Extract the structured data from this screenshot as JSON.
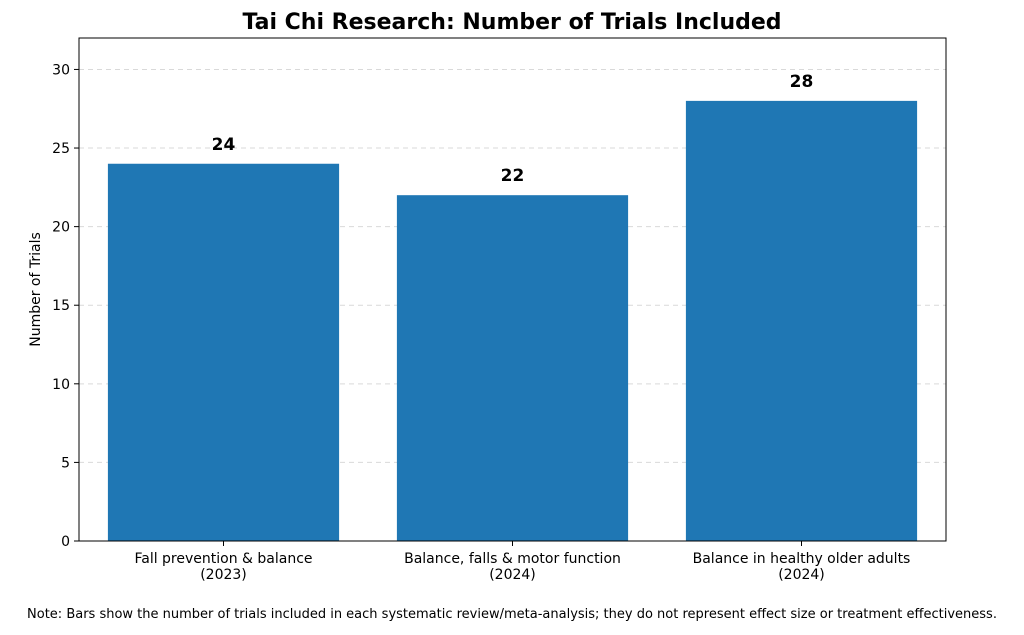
{
  "chart_data": {
    "type": "bar",
    "title": "Tai Chi Research: Number of Trials Included",
    "ylabel": "Number of Trials",
    "xlabel": "",
    "categories": [
      [
        "Fall prevention & balance",
        "(2023)"
      ],
      [
        "Balance, falls & motor function",
        "(2024)"
      ],
      [
        "Balance in healthy older adults",
        "(2024)"
      ]
    ],
    "values": [
      24,
      22,
      28
    ],
    "data_labels": [
      "24",
      "22",
      "28"
    ],
    "ylim": [
      0,
      32
    ],
    "yticks": [
      0,
      5,
      10,
      15,
      20,
      25,
      30
    ],
    "grid": "horizontal dashed",
    "bar_color": "#1f77b4"
  },
  "note": "Note: Bars show the number of trials included in each systematic review/meta-analysis; they do not represent effect size or treatment effectiveness."
}
